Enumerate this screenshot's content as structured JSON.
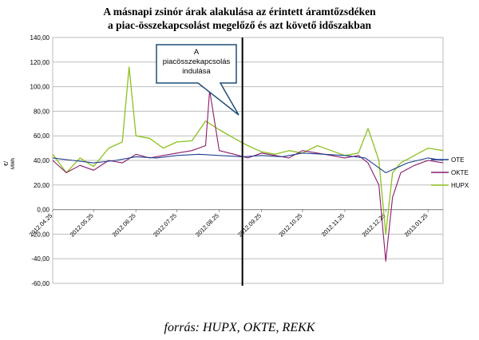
{
  "title": {
    "line1": "A másnapi zsinór árak alakulása az érintett áramtőzsdéken",
    "line2": "a piac-összekapcsolást megelőző és azt követő időszakban"
  },
  "source": "forrás: HUPX, OKTE, REKK",
  "colors": {
    "OTE": "#1f3f8f",
    "OKTE": "#8b1a6b",
    "HUPX": "#8dc11f",
    "grid": "#bdbdbd",
    "callout_border": "#1f4e79"
  },
  "chart_data": {
    "type": "line",
    "title": "A másnapi zsinór árak alakulása az érintett áramtőzsdéken a piac-összekapcsolást megelőző és azt követő időszakban",
    "ylabel_lines": [
      "€/",
      "MWh"
    ],
    "ylim": [
      -60,
      140
    ],
    "yticks": [
      "140,00",
      "120,00",
      "100,00",
      "80,00",
      "60,00",
      "40,00",
      "20,00",
      "0,00",
      "-20,00",
      "-40,00",
      "-60,00"
    ],
    "x_range": [
      "2012.04.25",
      "2013.02.05"
    ],
    "xtick_labels": [
      "2012.04.25",
      "2012.05.25",
      "2012.06.25",
      "2012.07.25",
      "2012.08.25",
      "2012.09.25",
      "2012.10.25",
      "2012.11.25",
      "2012.12.25",
      "2013.01.25"
    ],
    "grid": true,
    "legend_position": "right",
    "event": {
      "date": "2012.09.11",
      "label": "A piacösszekapcsolás indulása"
    },
    "series": [
      {
        "name": "OTE",
        "x": [
          "2012.04.25",
          "2012.05.10",
          "2012.05.25",
          "2012.06.10",
          "2012.06.25",
          "2012.07.10",
          "2012.07.25",
          "2012.08.10",
          "2012.08.25",
          "2012.09.11",
          "2012.09.25",
          "2012.10.10",
          "2012.10.25",
          "2012.11.10",
          "2012.11.25",
          "2012.12.10",
          "2012.12.25",
          "2013.01.10",
          "2013.01.25",
          "2013.02.05"
        ],
        "values": [
          42,
          40,
          38,
          40,
          43,
          42,
          44,
          45,
          44,
          43,
          44,
          43,
          46,
          45,
          44,
          42,
          30,
          38,
          42,
          40
        ]
      },
      {
        "name": "OKTE",
        "x": [
          "2012.04.25",
          "2012.05.05",
          "2012.05.15",
          "2012.05.25",
          "2012.06.05",
          "2012.06.15",
          "2012.06.25",
          "2012.07.05",
          "2012.07.15",
          "2012.07.25",
          "2012.08.05",
          "2012.08.15",
          "2012.08.18",
          "2012.08.25",
          "2012.09.05",
          "2012.09.15",
          "2012.09.25",
          "2012.10.05",
          "2012.10.15",
          "2012.10.25",
          "2012.11.05",
          "2012.11.15",
          "2012.11.25",
          "2012.12.05",
          "2012.12.12",
          "2012.12.20",
          "2012.12.25",
          "2012.12.30",
          "2013.01.05",
          "2013.01.15",
          "2013.01.25",
          "2013.02.05"
        ],
        "values": [
          40,
          30,
          36,
          32,
          40,
          38,
          45,
          42,
          44,
          46,
          48,
          52,
          97,
          48,
          45,
          42,
          46,
          44,
          42,
          48,
          46,
          44,
          42,
          44,
          38,
          20,
          -42,
          10,
          30,
          36,
          40,
          38
        ]
      },
      {
        "name": "HUPX",
        "x": [
          "2012.04.25",
          "2012.05.05",
          "2012.05.15",
          "2012.05.25",
          "2012.06.05",
          "2012.06.15",
          "2012.06.20",
          "2012.06.25",
          "2012.07.05",
          "2012.07.15",
          "2012.07.25",
          "2012.08.05",
          "2012.08.15",
          "2012.08.25",
          "2012.09.05",
          "2012.09.15",
          "2012.09.25",
          "2012.10.05",
          "2012.10.15",
          "2012.10.25",
          "2012.11.05",
          "2012.11.15",
          "2012.11.25",
          "2012.12.05",
          "2012.12.12",
          "2012.12.20",
          "2012.12.25",
          "2012.12.30",
          "2013.01.05",
          "2013.01.15",
          "2013.01.25",
          "2013.02.05"
        ],
        "values": [
          45,
          30,
          42,
          35,
          50,
          55,
          116,
          60,
          58,
          50,
          55,
          56,
          72,
          65,
          58,
          52,
          47,
          45,
          48,
          46,
          52,
          48,
          44,
          46,
          66,
          40,
          -20,
          30,
          38,
          44,
          50,
          48
        ]
      }
    ]
  }
}
